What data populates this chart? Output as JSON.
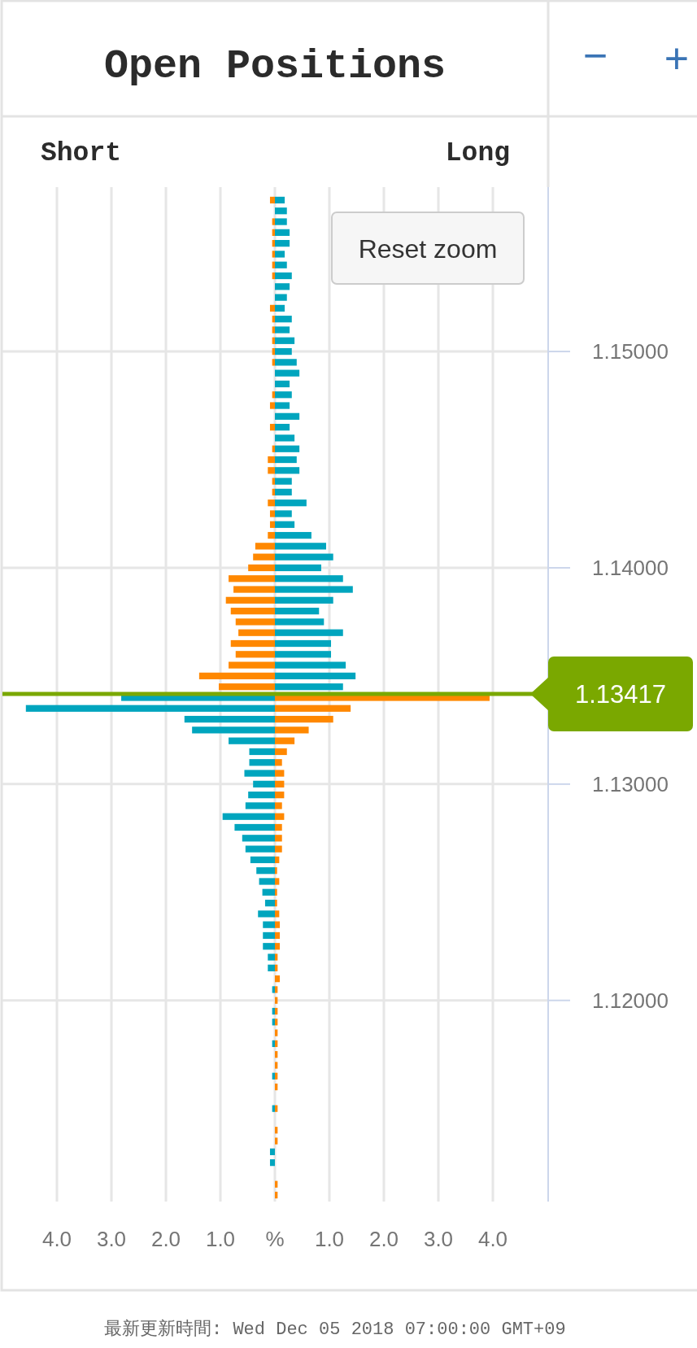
{
  "chart_data": {
    "type": "bar",
    "orientation": "horizontal",
    "title": "Open Positions",
    "x": [
      1.157,
      1.1565,
      1.156,
      1.1555,
      1.155,
      1.1545,
      1.154,
      1.1535,
      1.153,
      1.1525,
      1.152,
      1.1515,
      1.151,
      1.1505,
      1.15,
      1.1495,
      1.149,
      1.1485,
      1.148,
      1.1475,
      1.147,
      1.1465,
      1.146,
      1.1455,
      1.145,
      1.1445,
      1.144,
      1.1435,
      1.143,
      1.1425,
      1.142,
      1.1415,
      1.141,
      1.1405,
      1.14,
      1.1395,
      1.139,
      1.1385,
      1.138,
      1.1375,
      1.137,
      1.1365,
      1.136,
      1.1355,
      1.135,
      1.1345,
      1.134,
      1.1335,
      1.133,
      1.1325,
      1.132,
      1.1315,
      1.131,
      1.1305,
      1.13,
      1.1295,
      1.129,
      1.1285,
      1.128,
      1.1275,
      1.127,
      1.1265,
      1.126,
      1.1255,
      1.125,
      1.1245,
      1.124,
      1.1235,
      1.123,
      1.1225,
      1.122,
      1.1215,
      1.121,
      1.1205,
      1.12,
      1.1195,
      1.119,
      1.1185,
      1.118,
      1.1175,
      1.117,
      1.1165,
      1.116,
      1.1155,
      1.115,
      1.1145,
      1.114,
      1.1135,
      1.113,
      1.1125,
      1.112,
      1.1115,
      1.111
    ],
    "series": [
      {
        "values": [
          -0.09,
          0,
          -0.05,
          -0.05,
          -0.05,
          -0.05,
          -0.05,
          -0.05,
          0,
          0,
          -0.09,
          -0.05,
          -0.05,
          -0.05,
          -0.05,
          -0.05,
          0,
          0,
          -0.05,
          -0.09,
          0,
          -0.09,
          0,
          -0.05,
          -0.13,
          -0.13,
          -0.05,
          -0.05,
          -0.13,
          -0.09,
          -0.09,
          -0.13,
          -0.36,
          -0.4,
          -0.49,
          -0.85,
          -0.76,
          -0.9,
          -0.81,
          -0.72,
          -0.67,
          -0.81,
          -0.72,
          -0.85,
          -1.39,
          -1.03,
          -2.82,
          -4.57,
          -1.66,
          -1.52,
          -0.85,
          -0.47,
          -0.47,
          -0.56,
          -0.4,
          -0.49,
          -0.54,
          -0.96,
          -0.74,
          -0.6,
          -0.54,
          -0.45,
          -0.34,
          -0.29,
          -0.23,
          -0.18,
          -0.31,
          -0.22,
          -0.22,
          -0.22,
          -0.13,
          -0.13,
          0,
          -0.05,
          0,
          -0.05,
          -0.05,
          0,
          -0.05,
          0,
          0,
          -0.05,
          0,
          0,
          -0.05,
          0,
          0,
          0,
          -0.09,
          -0.09,
          0,
          0,
          0
        ],
        "colors": [
          "#ff8800",
          "#ff8800",
          "#ff8800",
          "#ff8800",
          "#ff8800",
          "#ff8800",
          "#ff8800",
          "#ff8800",
          "#ff8800",
          "#ff8800",
          "#ff8800",
          "#ff8800",
          "#ff8800",
          "#ff8800",
          "#ff8800",
          "#ff8800",
          "#ff8800",
          "#ff8800",
          "#ff8800",
          "#ff8800",
          "#ff8800",
          "#ff8800",
          "#ff8800",
          "#ff8800",
          "#ff8800",
          "#ff8800",
          "#ff8800",
          "#ff8800",
          "#ff8800",
          "#ff8800",
          "#ff8800",
          "#ff8800",
          "#ff8800",
          "#ff8800",
          "#ff8800",
          "#ff8800",
          "#ff8800",
          "#ff8800",
          "#ff8800",
          "#ff8800",
          "#ff8800",
          "#ff8800",
          "#ff8800",
          "#ff8800",
          "#ff8800",
          "#ff8800",
          "#00a5be",
          "#00a5be",
          "#00a5be",
          "#00a5be",
          "#00a5be",
          "#00a5be",
          "#00a5be",
          "#00a5be",
          "#00a5be",
          "#00a5be",
          "#00a5be",
          "#00a5be",
          "#00a5be",
          "#00a5be",
          "#00a5be",
          "#00a5be",
          "#00a5be",
          "#00a5be",
          "#00a5be",
          "#00a5be",
          "#00a5be",
          "#00a5be",
          "#00a5be",
          "#00a5be",
          "#00a5be",
          "#00a5be",
          "#00a5be",
          "#00a5be",
          "#00a5be",
          "#00a5be",
          "#00a5be",
          "#00a5be",
          "#00a5be",
          "#00a5be",
          "#00a5be",
          "#00a5be",
          "#00a5be",
          "#00a5be",
          "#00a5be",
          "#00a5be",
          "#00a5be",
          "#00a5be",
          "#00a5be",
          "#00a5be",
          "#00a5be",
          "#00a5be",
          "#00a5be"
        ]
      },
      {
        "values": [
          0.18,
          0.22,
          0.22,
          0.27,
          0.27,
          0.18,
          0.22,
          0.31,
          0.27,
          0.22,
          0.18,
          0.31,
          0.27,
          0.36,
          0.31,
          0.4,
          0.45,
          0.27,
          0.31,
          0.27,
          0.45,
          0.27,
          0.36,
          0.45,
          0.4,
          0.45,
          0.31,
          0.31,
          0.58,
          0.31,
          0.36,
          0.67,
          0.94,
          1.07,
          0.85,
          1.25,
          1.43,
          1.07,
          0.81,
          0.9,
          1.25,
          1.03,
          1.03,
          1.3,
          1.48,
          1.25,
          3.94,
          1.39,
          1.07,
          0.62,
          0.36,
          0.22,
          0.13,
          0.17,
          0.17,
          0.17,
          0.13,
          0.17,
          0.13,
          0.13,
          0.13,
          0.08,
          0.04,
          0.08,
          0.04,
          0.04,
          0.08,
          0.09,
          0.09,
          0.09,
          0.05,
          0.05,
          0.09,
          0.05,
          0.05,
          0.05,
          0.05,
          0.05,
          0.05,
          0.05,
          0.05,
          0.05,
          0.05,
          0,
          0.05,
          0,
          0.05,
          0.05,
          0,
          0,
          0,
          0.05,
          0.05
        ],
        "colors": [
          "#00a5be",
          "#00a5be",
          "#00a5be",
          "#00a5be",
          "#00a5be",
          "#00a5be",
          "#00a5be",
          "#00a5be",
          "#00a5be",
          "#00a5be",
          "#00a5be",
          "#00a5be",
          "#00a5be",
          "#00a5be",
          "#00a5be",
          "#00a5be",
          "#00a5be",
          "#00a5be",
          "#00a5be",
          "#00a5be",
          "#00a5be",
          "#00a5be",
          "#00a5be",
          "#00a5be",
          "#00a5be",
          "#00a5be",
          "#00a5be",
          "#00a5be",
          "#00a5be",
          "#00a5be",
          "#00a5be",
          "#00a5be",
          "#00a5be",
          "#00a5be",
          "#00a5be",
          "#00a5be",
          "#00a5be",
          "#00a5be",
          "#00a5be",
          "#00a5be",
          "#00a5be",
          "#00a5be",
          "#00a5be",
          "#00a5be",
          "#00a5be",
          "#00a5be",
          "#ff8800",
          "#ff8800",
          "#ff8800",
          "#ff8800",
          "#ff8800",
          "#ff8800",
          "#ff8800",
          "#ff8800",
          "#ff8800",
          "#ff8800",
          "#ff8800",
          "#ff8800",
          "#ff8800",
          "#ff8800",
          "#ff8800",
          "#ff8800",
          "#ff8800",
          "#ff8800",
          "#ff8800",
          "#ff8800",
          "#ff8800",
          "#ff8800",
          "#ff8800",
          "#ff8800",
          "#ff8800",
          "#ff8800",
          "#ff8800",
          "#ff8800",
          "#ff8800",
          "#ff8800",
          "#ff8800",
          "#ff8800",
          "#ff8800",
          "#ff8800",
          "#ff8800",
          "#ff8800",
          "#ff8800",
          "#ff8800",
          "#ff8800",
          "#ff8800",
          "#ff8800",
          "#ff8800",
          "#ff8800",
          "#ff8800",
          "#ff8800",
          "#ff8800",
          "#ff8800"
        ]
      }
    ],
    "xlim": [
      -5,
      5
    ],
    "xticks": [
      {
        "value": -4,
        "label": "4.0"
      },
      {
        "value": -3,
        "label": "3.0"
      },
      {
        "value": -2,
        "label": "2.0"
      },
      {
        "value": -1,
        "label": "1.0"
      },
      {
        "value": 0,
        "label": "%"
      },
      {
        "value": 1,
        "label": "1.0"
      },
      {
        "value": 2,
        "label": "2.0"
      },
      {
        "value": 3,
        "label": "3.0"
      },
      {
        "value": 4,
        "label": "4.0"
      }
    ],
    "ylim": [
      1.1107,
      1.1576
    ],
    "yticks": [
      {
        "value": 1.12,
        "label": "1.12000"
      },
      {
        "value": 1.13,
        "label": "1.13000"
      },
      {
        "value": 1.14,
        "label": "1.14000"
      },
      {
        "value": 1.15,
        "label": "1.15000"
      }
    ],
    "grid": true,
    "stacked": true,
    "ref_lines": [
      {
        "axis": "y",
        "value": 1.13417,
        "label": "1.13417",
        "color": "#7aa800"
      }
    ],
    "annotations": [
      "Reset zoom",
      "−",
      "+",
      "最新更新時間: Wed Dec 05 2018 07:00:00 GMT+09",
      "Short",
      "Long"
    ]
  }
}
